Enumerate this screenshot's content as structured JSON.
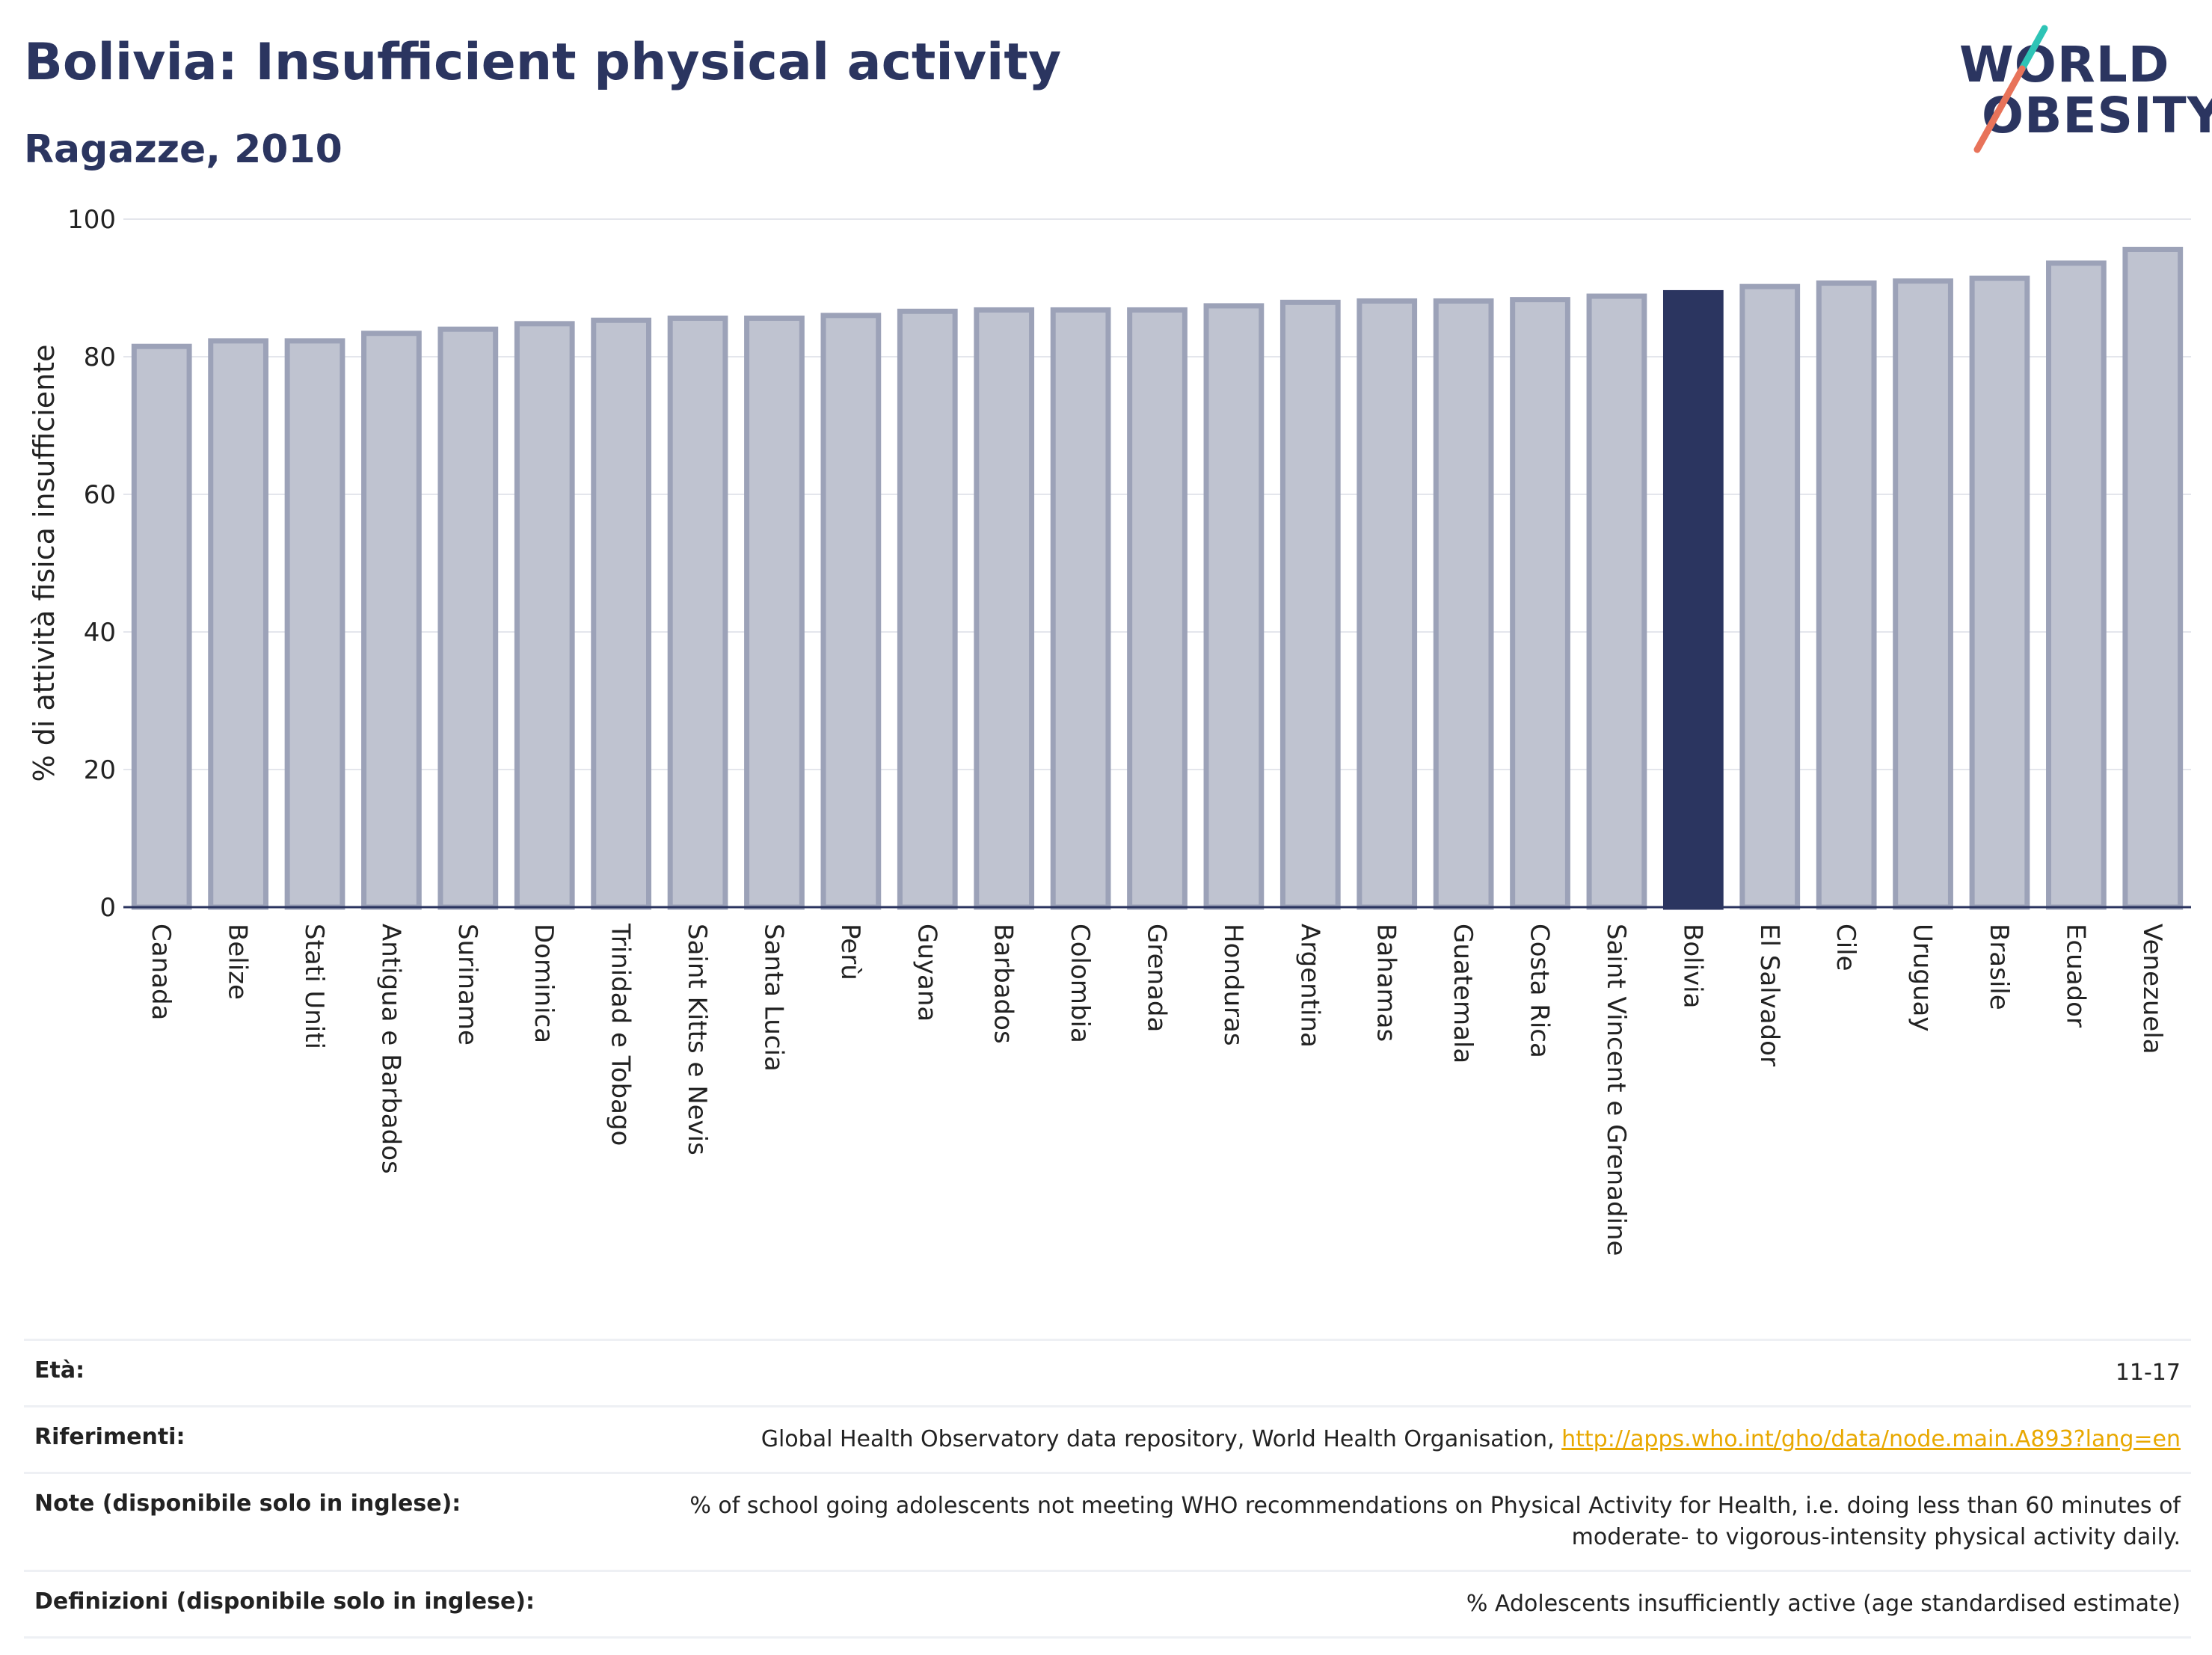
{
  "title": "Bolivia: Insufficient physical activity",
  "subtitle": "Ragazze, 2010",
  "logo": {
    "line1": "WORLD",
    "line2": "OBESITY",
    "accent_colors": [
      "#2ec4b6",
      "#e8735a"
    ]
  },
  "colors": {
    "bar": "#bfc3d0",
    "bar_border": "#9ca2b8",
    "highlight": "#2b3560",
    "grid": "#e4e6ec",
    "axis": "#2b3560"
  },
  "chart_data": {
    "type": "bar",
    "ylabel": "% di attività fisica insufficiente",
    "xlabel": "",
    "ylim": [
      0,
      100
    ],
    "yticks": [
      0,
      20,
      40,
      60,
      80,
      100
    ],
    "grid": true,
    "highlight": "Bolivia",
    "categories": [
      "Canada",
      "Belize",
      "Stati Uniti",
      "Antigua e Barbados",
      "Suriname",
      "Dominica",
      "Trinidad e Tobago",
      "Saint Kitts e Nevis",
      "Santa Lucia",
      "Perù",
      "Guyana",
      "Barbados",
      "Colombia",
      "Grenada",
      "Honduras",
      "Argentina",
      "Bahamas",
      "Guatemala",
      "Costa Rica",
      "Saint Vincent e Grenadine",
      "Bolivia",
      "El Salvador",
      "Cile",
      "Uruguay",
      "Brasile",
      "Ecuador",
      "Venezuela"
    ],
    "values": [
      81.5,
      82.3,
      82.3,
      83.4,
      84.0,
      84.8,
      85.3,
      85.6,
      85.6,
      86.0,
      86.6,
      86.8,
      86.8,
      86.8,
      87.4,
      87.9,
      88.1,
      88.1,
      88.3,
      88.8,
      89.3,
      90.2,
      90.7,
      91.0,
      91.4,
      93.6,
      95.6
    ]
  },
  "info": {
    "age": {
      "label": "Età:",
      "value": "11-17"
    },
    "references": {
      "label": "Riferimenti:",
      "value": "Global Health Observatory data repository, World Health Organisation, ",
      "link": "http://apps.who.int/gho/data/node.main.A893?lang=en"
    },
    "notes": {
      "label": "Note (disponibile solo in inglese):",
      "value": "% of school going adolescents not meeting WHO recommendations on Physical Activity for Health, i.e. doing less than 60 minutes of moderate- to vigorous-intensity physical activity daily."
    },
    "definitions": {
      "label": "Definizioni (disponibile solo in inglese):",
      "value": "% Adolescents insufficiently active (age standardised estimate)"
    }
  }
}
